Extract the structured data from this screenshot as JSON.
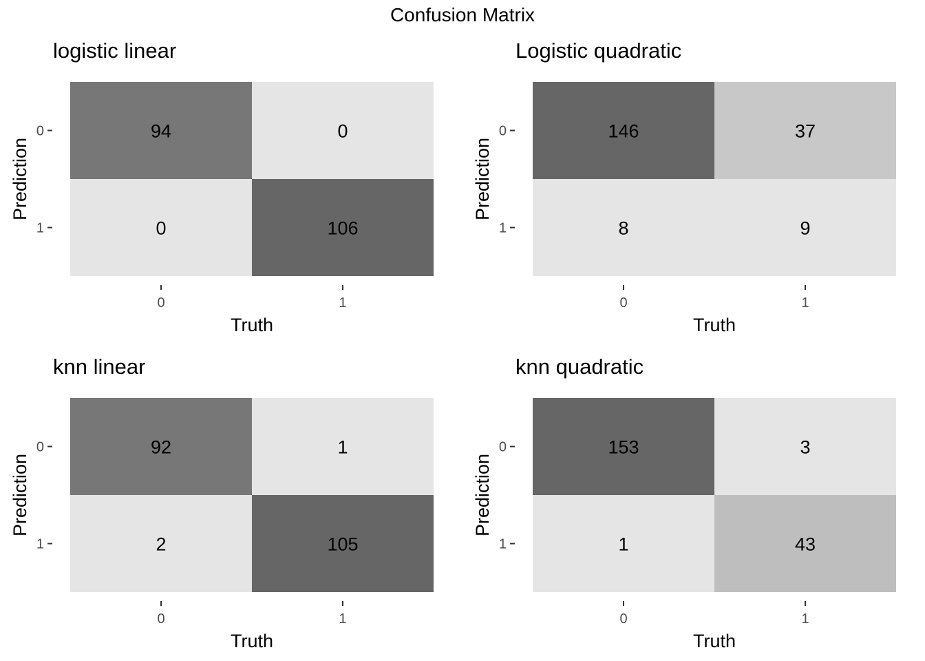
{
  "figure": {
    "title": "Confusion Matrix"
  },
  "chart_data": [
    {
      "type": "heatmap",
      "title": "logistic linear",
      "xlabel": "Truth",
      "ylabel": "Prediction",
      "x_categories": [
        "0",
        "1"
      ],
      "y_categories": [
        "0",
        "1"
      ],
      "cells": [
        {
          "truth": "0",
          "prediction": "0",
          "value": 94,
          "fill": "#777777"
        },
        {
          "truth": "1",
          "prediction": "0",
          "value": 0,
          "fill": "#e5e5e5"
        },
        {
          "truth": "0",
          "prediction": "1",
          "value": 0,
          "fill": "#e5e5e5"
        },
        {
          "truth": "1",
          "prediction": "1",
          "value": 106,
          "fill": "#666666"
        }
      ],
      "grid": false,
      "legend": "none"
    },
    {
      "type": "heatmap",
      "title": "Logistic quadratic",
      "xlabel": "Truth",
      "ylabel": "Prediction",
      "x_categories": [
        "0",
        "1"
      ],
      "y_categories": [
        "0",
        "1"
      ],
      "cells": [
        {
          "truth": "0",
          "prediction": "0",
          "value": 146,
          "fill": "#666666"
        },
        {
          "truth": "1",
          "prediction": "0",
          "value": 37,
          "fill": "#c8c8c8"
        },
        {
          "truth": "0",
          "prediction": "1",
          "value": 8,
          "fill": "#e5e5e5"
        },
        {
          "truth": "1",
          "prediction": "1",
          "value": 9,
          "fill": "#e5e5e5"
        }
      ],
      "grid": false,
      "legend": "none"
    },
    {
      "type": "heatmap",
      "title": "knn linear",
      "xlabel": "Truth",
      "ylabel": "Prediction",
      "x_categories": [
        "0",
        "1"
      ],
      "y_categories": [
        "0",
        "1"
      ],
      "cells": [
        {
          "truth": "0",
          "prediction": "0",
          "value": 92,
          "fill": "#777777"
        },
        {
          "truth": "1",
          "prediction": "0",
          "value": 1,
          "fill": "#e5e5e5"
        },
        {
          "truth": "0",
          "prediction": "1",
          "value": 2,
          "fill": "#e5e5e5"
        },
        {
          "truth": "1",
          "prediction": "1",
          "value": 105,
          "fill": "#666666"
        }
      ],
      "grid": false,
      "legend": "none"
    },
    {
      "type": "heatmap",
      "title": "knn quadratic",
      "xlabel": "Truth",
      "ylabel": "Prediction",
      "x_categories": [
        "0",
        "1"
      ],
      "y_categories": [
        "0",
        "1"
      ],
      "cells": [
        {
          "truth": "0",
          "prediction": "0",
          "value": 153,
          "fill": "#666666"
        },
        {
          "truth": "1",
          "prediction": "0",
          "value": 3,
          "fill": "#e5e5e5"
        },
        {
          "truth": "0",
          "prediction": "1",
          "value": 1,
          "fill": "#e5e5e5"
        },
        {
          "truth": "1",
          "prediction": "1",
          "value": 43,
          "fill": "#bebebe"
        }
      ],
      "grid": false,
      "legend": "none"
    }
  ]
}
